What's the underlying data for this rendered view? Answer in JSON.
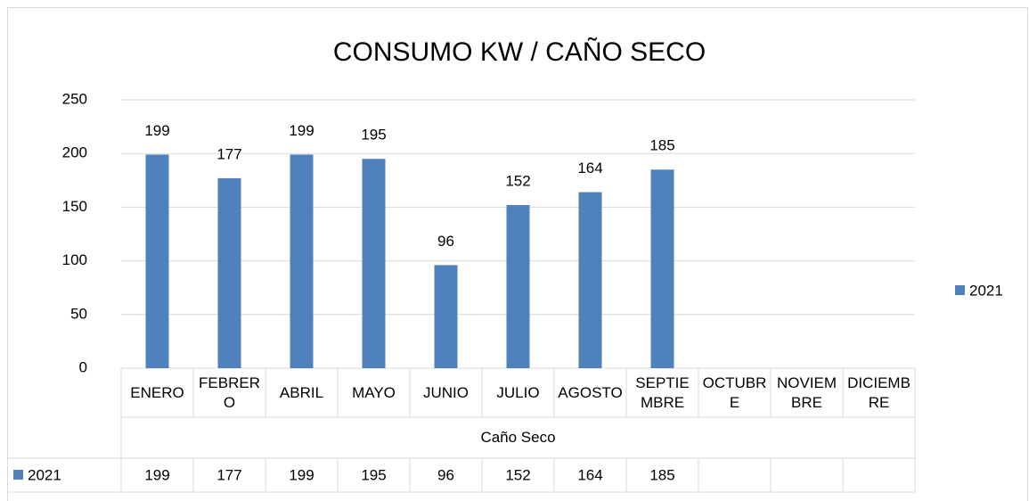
{
  "chart_data": {
    "type": "bar",
    "title": "CONSUMO KW / CAÑO SECO",
    "categories": [
      "ENERO",
      "FEBRERO",
      "ABRIL",
      "MAYO",
      "JUNIO",
      "JULIO",
      "AGOSTO",
      "SEPTIEMBRE",
      "OCTUBRE",
      "NOVIEMBRE",
      "DICIEMBRE"
    ],
    "category_group": "Caño Seco",
    "series": [
      {
        "name": "2021",
        "color": "#4f81bd",
        "values": [
          199,
          177,
          199,
          195,
          96,
          152,
          164,
          185,
          null,
          null,
          null
        ]
      }
    ],
    "ylim": [
      0,
      250
    ],
    "yticks": [
      0,
      50,
      100,
      150,
      200,
      250
    ],
    "grid": true,
    "legend": "right",
    "data_table": true
  }
}
